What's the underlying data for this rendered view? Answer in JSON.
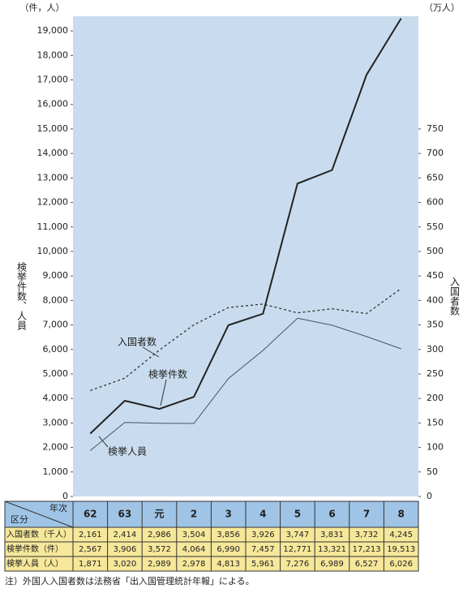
{
  "chart_data": {
    "type": "line",
    "y_unit": "（件，人）",
    "y2_unit": "（万人）",
    "ylabel": "検挙件数、人員",
    "y2label": "入国者数",
    "categories": [
      "62",
      "63",
      "元",
      "2",
      "3",
      "4",
      "5",
      "6",
      "7",
      "8"
    ],
    "series": [
      {
        "name": "入国者数",
        "color": "#333333",
        "dash": true,
        "width": 1.3,
        "axis": "y2",
        "values": [
          216.1,
          241.4,
          298.6,
          350.4,
          385.6,
          392.6,
          374.7,
          383.1,
          373.2,
          424.5
        ],
        "value_labels": [
          "2,161",
          "2,414",
          "2,986",
          "3,504",
          "3,856",
          "3,926",
          "3,747",
          "3,831",
          "3,732",
          "4,245"
        ]
      },
      {
        "name": "検挙件数",
        "color": "#222222",
        "dash": false,
        "width": 2,
        "values": [
          2567,
          3906,
          3572,
          4064,
          6990,
          7457,
          12771,
          13321,
          17213,
          19513
        ],
        "value_labels": [
          "2,567",
          "3,906",
          "3,572",
          "4,064",
          "6,990",
          "7,457",
          "12,771",
          "13,321",
          "17,213",
          "19,513"
        ]
      },
      {
        "name": "検挙人員",
        "color": "#445566",
        "dash": false,
        "width": 1,
        "values": [
          1871,
          3020,
          2989,
          2978,
          4813,
          5961,
          7276,
          6989,
          6527,
          6026
        ],
        "value_labels": [
          "1,871",
          "3,020",
          "2,989",
          "2,978",
          "4,813",
          "5,961",
          "7,276",
          "6,989",
          "6,527",
          "6,026"
        ]
      }
    ],
    "ylim": [
      0,
      19600
    ],
    "y2lim": [
      0,
      980
    ],
    "yticks": [
      0,
      {
        "value": 1000,
        "label": "1,000"
      },
      {
        "value": 2000,
        "label": "2,000"
      },
      {
        "value": 3000,
        "label": "3,000"
      },
      {
        "value": 4000,
        "label": "4,000"
      },
      {
        "value": 5000,
        "label": "5,000"
      },
      {
        "value": 6000,
        "label": "6,000"
      },
      {
        "value": 7000,
        "label": "7,000"
      },
      {
        "value": 8000,
        "label": "8,000"
      },
      {
        "value": 9000,
        "label": "9,000"
      },
      {
        "value": 10000,
        "label": "10,000"
      },
      {
        "value": 11000,
        "label": "11,000"
      },
      {
        "value": 12000,
        "label": "12,000"
      },
      {
        "value": 13000,
        "label": "13,000"
      },
      {
        "value": 14000,
        "label": "14,000"
      },
      {
        "value": 15000,
        "label": "15,000"
      },
      {
        "value": 16000,
        "label": "16,000"
      },
      {
        "value": 17000,
        "label": "17,000"
      },
      {
        "value": 18000,
        "label": "18,000"
      },
      {
        "value": 19000,
        "label": "19,000"
      }
    ],
    "y2ticks": [
      0,
      50,
      100,
      150,
      200,
      250,
      300,
      350,
      400,
      450,
      500,
      550,
      600,
      650,
      700,
      750
    ],
    "table": {
      "corner_top": "年次",
      "corner_left": "区分",
      "row_labels": [
        "入国者数（千人）",
        "検挙件数（件）",
        "検挙人員（人）"
      ]
    },
    "note": "注）外国人入国者数は法務省「出入国管理統計年報」による。"
  }
}
